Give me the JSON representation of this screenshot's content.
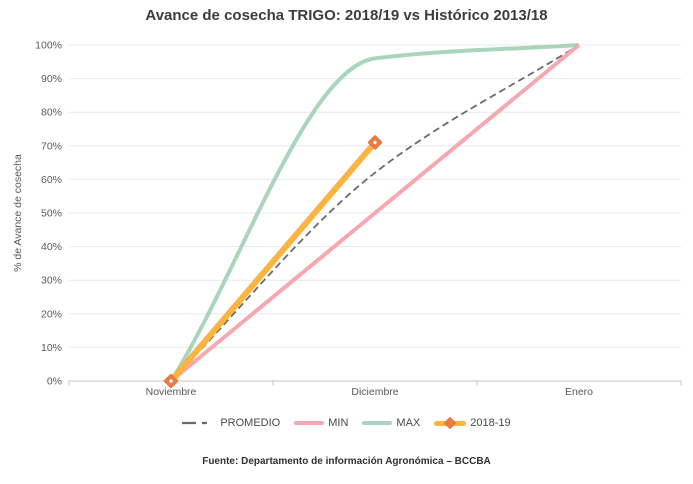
{
  "title": "Avance de cosecha TRIGO: 2018/19 vs Histórico 2013/18",
  "source_note": "Fuente: Departamento de información Agronómica – BCCBA",
  "colors": {
    "background": "#ffffff",
    "gridline": "#e9e9e9",
    "axis_line": "#c4c4c4",
    "tick_text": "#595959",
    "axis_title_text": "#595959",
    "title_text": "#3c3c3c",
    "legend_text": "#474747",
    "footer_text": "#313131"
  },
  "chart_data": {
    "type": "line",
    "title": "Avance de cosecha TRIGO: 2018/19 vs Histórico 2013/18",
    "xlabel": "",
    "ylabel": "% de Avance de cosecha",
    "categories": [
      "Noviembre",
      "Diciembre",
      "Enero"
    ],
    "yticks": [
      "0%",
      "10%",
      "20%",
      "30%",
      "40%",
      "50%",
      "60%",
      "70%",
      "80%",
      "90%",
      "100%"
    ],
    "ylim": [
      0,
      100
    ],
    "grid": true,
    "legend_position": "bottom",
    "series": [
      {
        "name": "PROMEDIO",
        "values": [
          0,
          62,
          100
        ],
        "color": "#6a6a6a",
        "line_style": "dashed",
        "width": 1.8,
        "marker": null
      },
      {
        "name": "MIN",
        "values": [
          0,
          50,
          100
        ],
        "color": "#f7a8af",
        "line_style": "solid",
        "width": 4,
        "marker": null
      },
      {
        "name": "MAX",
        "values": [
          0,
          96,
          100
        ],
        "color": "#a8d5bc",
        "line_style": "solid",
        "width": 4,
        "marker": null
      },
      {
        "name": "2018-19",
        "values": [
          0,
          71,
          null
        ],
        "color": "#fbb440",
        "line_style": "solid",
        "width": 6,
        "marker": "diamond",
        "marker_color": "#e87a45"
      }
    ]
  }
}
